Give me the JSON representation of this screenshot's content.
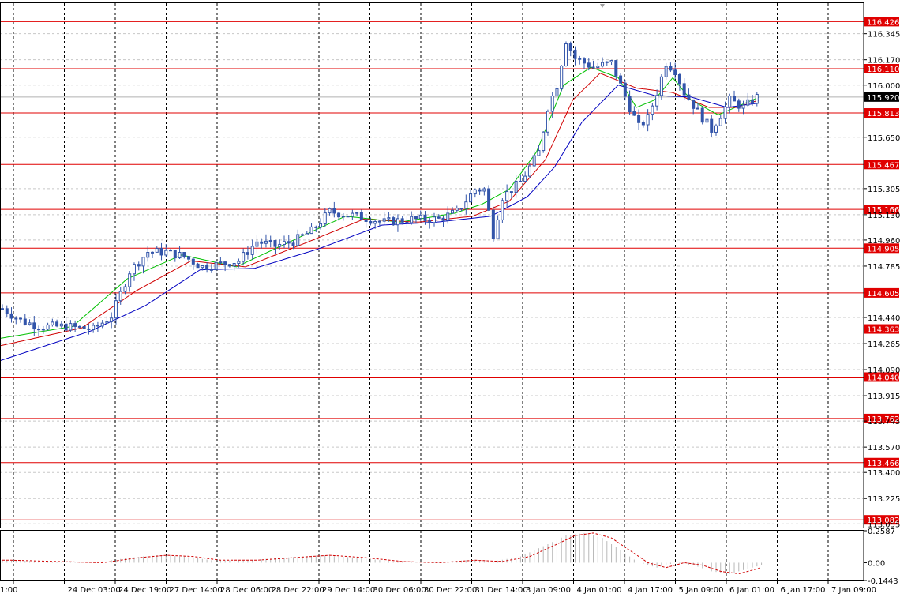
{
  "chart_data": [
    {
      "type": "candlestick",
      "symbol_hint": "USDJPY-like price chart",
      "ylim": [
        113.03,
        116.55
      ],
      "y_ticks": [
        116.345,
        116.17,
        116.0,
        115.65,
        115.305,
        115.13,
        114.96,
        114.785,
        114.44,
        114.265,
        114.09,
        113.915,
        113.745,
        113.57,
        113.4,
        113.225,
        113.055
      ],
      "y_tick_labels": [
        "116.345",
        "116.170",
        "116.000",
        "115.650",
        "115.305",
        "115.130",
        "114.960",
        "114.785",
        "114.440",
        "114.265",
        "114.090",
        "113.915",
        "113.745",
        "113.570",
        "113.400",
        "113.225",
        "113.055"
      ],
      "current_price": 115.92,
      "current_price_label": "115.920",
      "x_labels": [
        "1:00",
        "24 Dec 03:00",
        "24 Dec 19:00",
        "27 Dec 14:00",
        "28 Dec 06:00",
        "28 Dec 22:00",
        "29 Dec 14:00",
        "30 Dec 06:00",
        "30 Dec 22:00",
        "31 Dec 14:00",
        "3 Jan 09:00",
        "4 Jan 01:00",
        "4 Jan 17:00",
        "5 Jan 09:00",
        "6 Jan 01:00",
        "6 Jan 17:00",
        "7 Jan 09:00"
      ],
      "levels": [
        {
          "value": 116.426,
          "label": "116.426"
        },
        {
          "value": 116.11,
          "label": "116.110"
        },
        {
          "value": 115.813,
          "label": "115.813"
        },
        {
          "value": 115.467,
          "label": "115.467"
        },
        {
          "value": 115.166,
          "label": "115.166"
        },
        {
          "value": 114.905,
          "label": "114.905"
        },
        {
          "value": 114.605,
          "label": "114.605"
        },
        {
          "value": 114.363,
          "label": "114.363"
        },
        {
          "value": 114.04,
          "label": "114.040"
        },
        {
          "value": 113.762,
          "label": "113.762"
        },
        {
          "value": 113.466,
          "label": "113.466"
        },
        {
          "value": 113.082,
          "label": "113.082"
        }
      ],
      "price_path": [
        [
          0,
          114.5
        ],
        [
          4,
          114.42
        ],
        [
          8,
          114.38
        ],
        [
          14,
          114.38
        ],
        [
          20,
          114.36
        ],
        [
          24,
          114.45
        ],
        [
          28,
          114.75
        ],
        [
          32,
          114.88
        ],
        [
          36,
          114.88
        ],
        [
          40,
          114.85
        ],
        [
          44,
          114.78
        ],
        [
          48,
          114.8
        ],
        [
          52,
          114.82
        ],
        [
          56,
          114.95
        ],
        [
          60,
          114.92
        ],
        [
          64,
          114.95
        ],
        [
          68,
          115.02
        ],
        [
          72,
          115.15
        ],
        [
          78,
          115.12
        ],
        [
          84,
          115.08
        ],
        [
          90,
          115.1
        ],
        [
          96,
          115.1
        ],
        [
          100,
          115.15
        ],
        [
          104,
          115.3
        ],
        [
          106,
          115.3
        ],
        [
          108,
          115.0
        ],
        [
          110,
          115.25
        ],
        [
          114,
          115.35
        ],
        [
          118,
          115.55
        ],
        [
          120,
          115.85
        ],
        [
          122,
          116.0
        ],
        [
          124,
          116.3
        ],
        [
          126,
          116.18
        ],
        [
          130,
          116.12
        ],
        [
          134,
          116.15
        ],
        [
          136,
          116.0
        ],
        [
          138,
          115.85
        ],
        [
          140,
          115.72
        ],
        [
          142,
          115.78
        ],
        [
          144,
          115.95
        ],
        [
          146,
          116.15
        ],
        [
          148,
          116.1
        ],
        [
          150,
          115.95
        ],
        [
          154,
          115.78
        ],
        [
          156,
          115.7
        ],
        [
          158,
          115.8
        ],
        [
          160,
          115.9
        ],
        [
          163,
          115.85
        ],
        [
          166,
          115.92
        ]
      ],
      "series": [
        {
          "color": "#00c000",
          "values": [
            [
              0,
              114.3
            ],
            [
              16,
              114.38
            ],
            [
              28,
              114.7
            ],
            [
              40,
              114.86
            ],
            [
              52,
              114.78
            ],
            [
              66,
              114.98
            ],
            [
              76,
              115.12
            ],
            [
              88,
              115.08
            ],
            [
              100,
              115.14
            ],
            [
              106,
              115.2
            ],
            [
              112,
              115.3
            ],
            [
              118,
              115.55
            ],
            [
              124,
              116.0
            ],
            [
              130,
              116.12
            ],
            [
              136,
              116.05
            ],
            [
              140,
              115.85
            ],
            [
              144,
              115.9
            ],
            [
              148,
              116.05
            ],
            [
              152,
              115.9
            ],
            [
              158,
              115.8
            ],
            [
              164,
              115.88
            ],
            [
              167,
              115.92
            ]
          ]
        },
        {
          "color": "#d00000",
          "values": [
            [
              0,
              114.25
            ],
            [
              18,
              114.37
            ],
            [
              30,
              114.62
            ],
            [
              42,
              114.82
            ],
            [
              54,
              114.78
            ],
            [
              68,
              114.95
            ],
            [
              80,
              115.1
            ],
            [
              92,
              115.08
            ],
            [
              104,
              115.12
            ],
            [
              112,
              115.22
            ],
            [
              120,
              115.5
            ],
            [
              126,
              115.9
            ],
            [
              132,
              116.08
            ],
            [
              140,
              115.98
            ],
            [
              148,
              115.95
            ],
            [
              156,
              115.85
            ],
            [
              162,
              115.85
            ],
            [
              167,
              115.9
            ]
          ]
        },
        {
          "color": "#0000c0",
          "values": [
            [
              0,
              114.15
            ],
            [
              20,
              114.35
            ],
            [
              32,
              114.52
            ],
            [
              44,
              114.76
            ],
            [
              56,
              114.77
            ],
            [
              70,
              114.9
            ],
            [
              84,
              115.06
            ],
            [
              96,
              115.08
            ],
            [
              108,
              115.12
            ],
            [
              116,
              115.25
            ],
            [
              122,
              115.45
            ],
            [
              128,
              115.75
            ],
            [
              136,
              116.0
            ],
            [
              144,
              115.93
            ],
            [
              152,
              115.92
            ],
            [
              160,
              115.85
            ],
            [
              167,
              115.88
            ]
          ]
        }
      ]
    },
    {
      "type": "histogram",
      "ylim": [
        -0.1443,
        0.2587
      ],
      "y_tick_labels": [
        "0.2587",
        "0.00",
        "-0.1443"
      ],
      "signal_color": "#d00000",
      "values": [
        [
          0,
          0.02
        ],
        [
          10,
          0.01
        ],
        [
          20,
          0.0
        ],
        [
          28,
          0.04
        ],
        [
          34,
          0.06
        ],
        [
          40,
          0.05
        ],
        [
          46,
          0.02
        ],
        [
          54,
          0.02
        ],
        [
          62,
          0.04
        ],
        [
          70,
          0.06
        ],
        [
          78,
          0.04
        ],
        [
          86,
          0.01
        ],
        [
          94,
          0.0
        ],
        [
          102,
          0.02
        ],
        [
          108,
          0.01
        ],
        [
          114,
          0.05
        ],
        [
          120,
          0.15
        ],
        [
          124,
          0.22
        ],
        [
          128,
          0.24
        ],
        [
          132,
          0.2
        ],
        [
          136,
          0.1
        ],
        [
          140,
          0.0
        ],
        [
          144,
          -0.04
        ],
        [
          148,
          0.0
        ],
        [
          152,
          -0.02
        ],
        [
          156,
          -0.07
        ],
        [
          160,
          -0.09
        ],
        [
          164,
          -0.05
        ],
        [
          167,
          -0.02
        ]
      ]
    }
  ]
}
